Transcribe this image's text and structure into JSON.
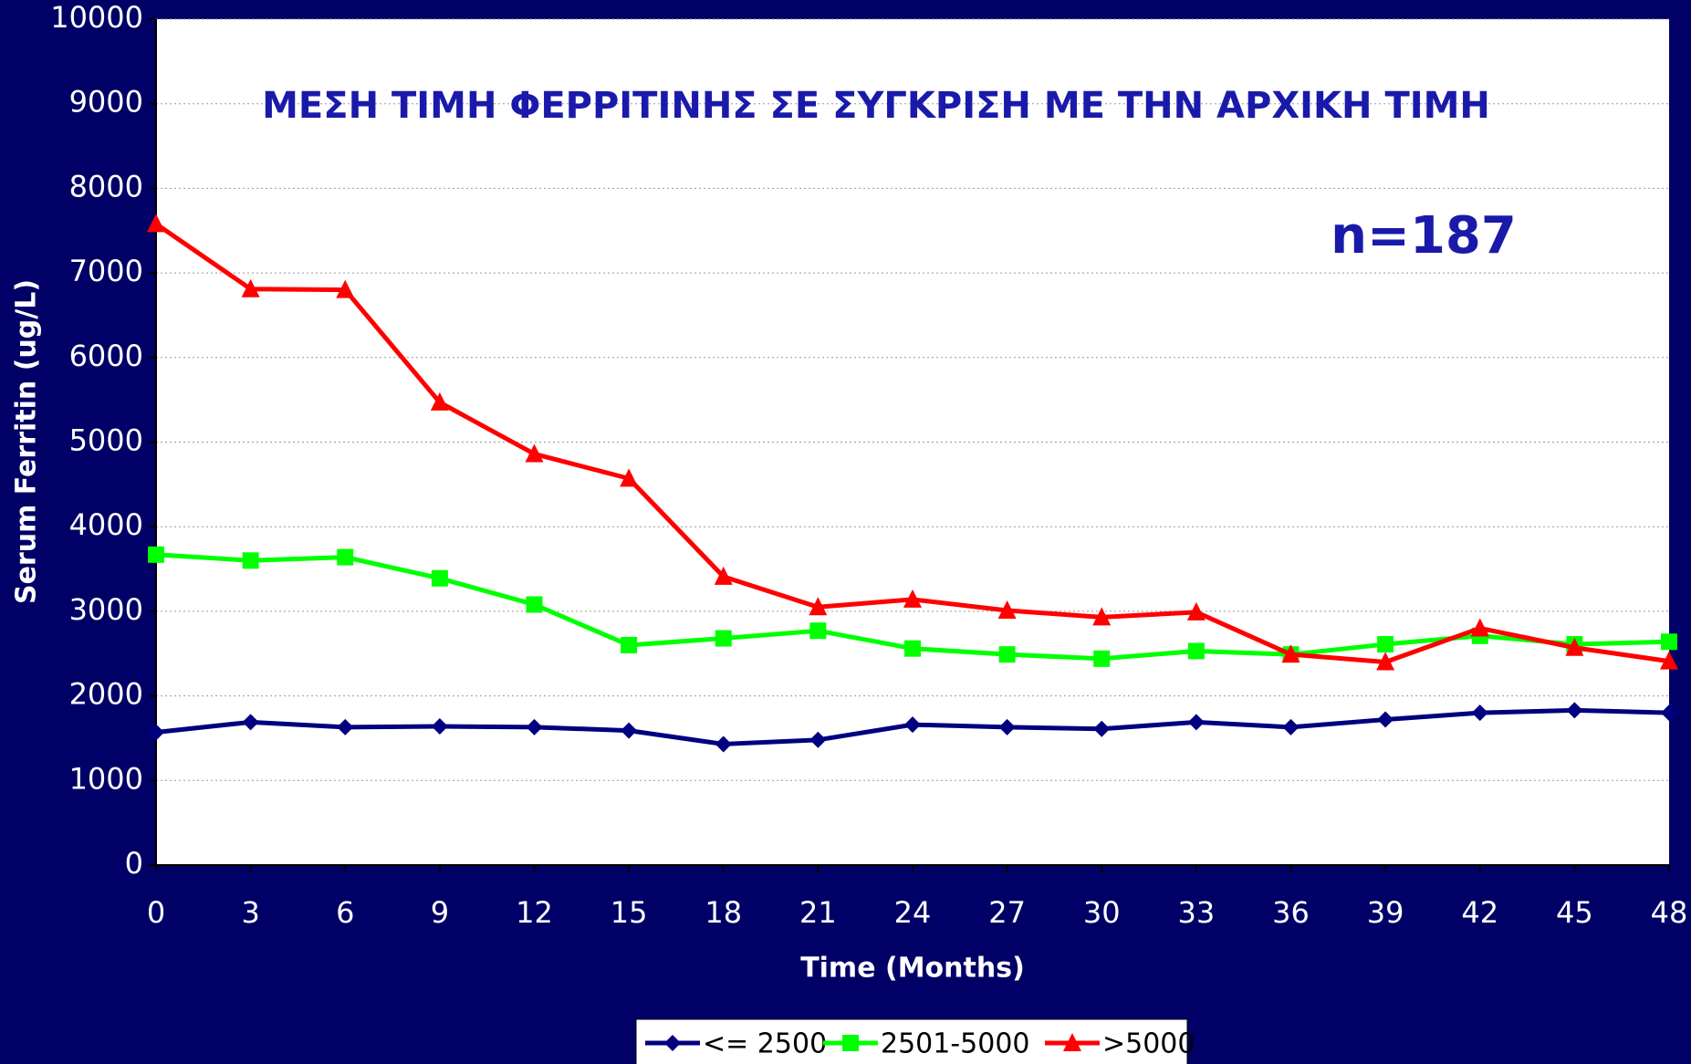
{
  "chart_data": {
    "type": "line",
    "title": "ΜΕΣΗ ΤΙΜΗ ΦΕΡΡΙΤΙΝΗΣ ΣΕ ΣΥΓΚΡΙΣΗ ΜΕ ΤΗΝ ΑΡΧΙΚΗ ΤΙΜΗ",
    "annotation": "n=187",
    "x_label": "Time (Months)",
    "y_label": "Serum Ferritin (ug/L)",
    "x": [
      0,
      3,
      6,
      9,
      12,
      15,
      18,
      21,
      24,
      27,
      30,
      33,
      36,
      39,
      42,
      45,
      48
    ],
    "xlim": [
      0,
      48
    ],
    "xticks": [
      0,
      3,
      6,
      9,
      12,
      15,
      18,
      21,
      24,
      27,
      30,
      33,
      36,
      39,
      42,
      45,
      48
    ],
    "ylim": [
      0,
      10000
    ],
    "yticks": [
      0,
      1000,
      2000,
      3000,
      4000,
      5000,
      6000,
      7000,
      8000,
      9000,
      10000
    ],
    "grid": true,
    "legend": "bottom",
    "series": [
      {
        "name": "<= 2500",
        "color": "#000080",
        "marker": "diamond",
        "values": [
          1570,
          1690,
          1630,
          1640,
          1630,
          1590,
          1430,
          1480,
          1660,
          1630,
          1610,
          1690,
          1630,
          1720,
          1800,
          1830,
          1800
        ]
      },
      {
        "name": "2501-5000",
        "color": "#00ff00",
        "marker": "square",
        "values": [
          3670,
          3600,
          3640,
          3390,
          3080,
          2600,
          2680,
          2770,
          2560,
          2490,
          2440,
          2530,
          2490,
          2610,
          2710,
          2610,
          2640
        ]
      },
      {
        "name": ">5000",
        "color": "#ff0000",
        "marker": "triangle",
        "values": [
          7580,
          6810,
          6800,
          5470,
          4860,
          4570,
          3410,
          3050,
          3140,
          3010,
          2930,
          2990,
          2490,
          2400,
          2800,
          2570,
          2410
        ]
      }
    ]
  }
}
